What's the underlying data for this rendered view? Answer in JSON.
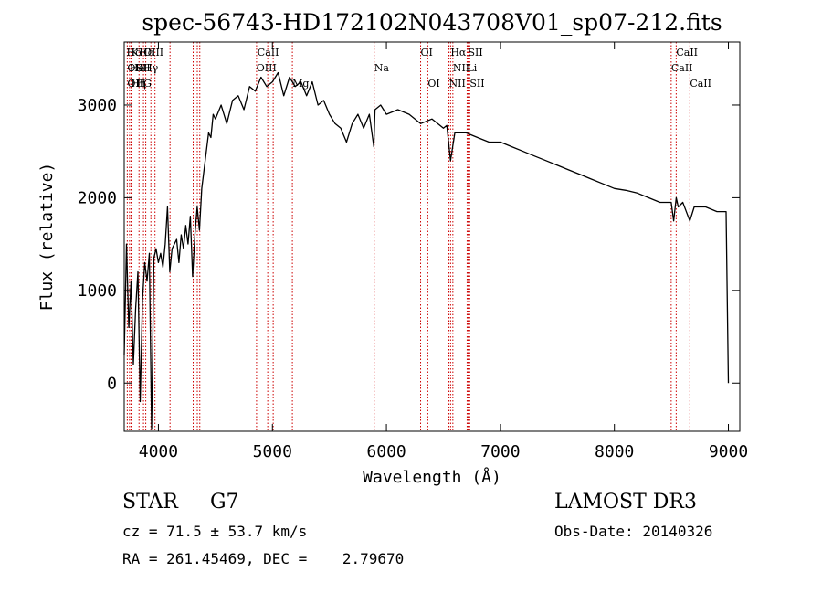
{
  "chart_data": {
    "type": "line",
    "title": "spec-56743-HD172102N043708V01_sp07-212.fits",
    "xlabel": "Wavelength (Å)",
    "ylabel": "Flux (relative)",
    "xlim": [
      3700,
      9100
    ],
    "ylim": [
      -520,
      3680
    ],
    "xticks": [
      4000,
      5000,
      6000,
      7000,
      8000,
      9000
    ],
    "yticks": [
      0,
      1000,
      2000,
      3000
    ],
    "grid": false,
    "line_color": "#000000",
    "marker_color": "#cc0000",
    "series": [
      {
        "x": [
          3700,
          3720,
          3740,
          3760,
          3780,
          3800,
          3820,
          3840,
          3860,
          3880,
          3900,
          3920,
          3940,
          3960,
          3980,
          4000,
          4020,
          4040,
          4060,
          4080,
          4100,
          4120,
          4140,
          4160,
          4180,
          4200,
          4220,
          4240,
          4260,
          4280,
          4300,
          4320,
          4340,
          4360,
          4380,
          4400,
          4420,
          4440,
          4460,
          4480,
          4500,
          4550,
          4600,
          4650,
          4700,
          4750,
          4800,
          4850,
          4900,
          4950,
          5000,
          5050,
          5100,
          5150,
          5200,
          5250,
          5300,
          5350,
          5400,
          5450,
          5500,
          5550,
          5600,
          5650,
          5700,
          5750,
          5800,
          5850,
          5890,
          5900,
          5950,
          6000,
          6100,
          6200,
          6300,
          6400,
          6500,
          6530,
          6563,
          6600,
          6700,
          6800,
          6900,
          7000,
          7100,
          7200,
          7300,
          7400,
          7500,
          7600,
          7700,
          7800,
          7900,
          8000,
          8100,
          8200,
          8300,
          8400,
          8498,
          8520,
          8542,
          8560,
          8600,
          8662,
          8700,
          8800,
          8900,
          8980,
          9000
        ],
        "y": [
          300,
          1500,
          600,
          1100,
          200,
          800,
          1200,
          -200,
          900,
          1300,
          1100,
          1400,
          -500,
          1350,
          1450,
          1300,
          1400,
          1250,
          1500,
          1900,
          1200,
          1450,
          1500,
          1550,
          1300,
          1600,
          1450,
          1700,
          1500,
          1800,
          1150,
          1600,
          1900,
          1650,
          2100,
          2300,
          2500,
          2700,
          2650,
          2900,
          2850,
          3000,
          2800,
          3050,
          3100,
          2950,
          3200,
          3150,
          3300,
          3200,
          3250,
          3350,
          3100,
          3300,
          3200,
          3250,
          3100,
          3250,
          3000,
          3050,
          2900,
          2800,
          2750,
          2600,
          2800,
          2900,
          2750,
          2900,
          2550,
          2950,
          3000,
          2900,
          2950,
          2900,
          2800,
          2850,
          2750,
          2780,
          2400,
          2700,
          2700,
          2650,
          2600,
          2600,
          2550,
          2500,
          2450,
          2400,
          2350,
          2300,
          2250,
          2200,
          2150,
          2100,
          2080,
          2050,
          2000,
          1950,
          1950,
          1750,
          2000,
          1900,
          1950,
          1750,
          1900,
          1900,
          1850,
          1850,
          0
        ]
      }
    ],
    "lines": [
      {
        "label": "Hδ",
        "x": 3720,
        "row": 1
      },
      {
        "label": "K",
        "x": 3760,
        "row": 1
      },
      {
        "label": "Hδ",
        "x": 3830,
        "row": 1
      },
      {
        "label": "OIII",
        "x": 3869,
        "row": 1
      },
      {
        "label": "OII",
        "x": 3727,
        "row": 2
      },
      {
        "label": "He",
        "x": 3747,
        "row": 2
      },
      {
        "label": "SII",
        "x": 3800,
        "row": 2
      },
      {
        "label": "Hγ",
        "x": 3869,
        "row": 2
      },
      {
        "label": "OII",
        "x": 3727,
        "row": 3
      },
      {
        "label": "Hη",
        "x": 3760,
        "row": 3
      },
      {
        "label": "H",
        "x": 3810,
        "row": 3
      },
      {
        "label": "G",
        "x": 3869,
        "row": 3
      },
      {
        "label": "CaII",
        "x": 4868,
        "row": 1
      },
      {
        "label": "OIII",
        "x": 4860,
        "row": 2
      },
      {
        "label": "Mg",
        "x": 5175,
        "row": 3
      },
      {
        "label": "Na",
        "x": 5893,
        "row": 2
      },
      {
        "label": "OI",
        "x": 6300,
        "row": 1
      },
      {
        "label": "OI",
        "x": 6363,
        "row": 3
      },
      {
        "label": "Hα",
        "x": 6563,
        "row": 1
      },
      {
        "label": "SII",
        "x": 6716,
        "row": 1
      },
      {
        "label": "NII",
        "x": 6583,
        "row": 2
      },
      {
        "label": "Li",
        "x": 6708,
        "row": 2
      },
      {
        "label": "NII",
        "x": 6548,
        "row": 3
      },
      {
        "label": "SII",
        "x": 6731,
        "row": 3
      },
      {
        "label": "CaII",
        "x": 8542,
        "row": 1
      },
      {
        "label": "CaII",
        "x": 8498,
        "row": 2
      },
      {
        "label": "CaII",
        "x": 8662,
        "row": 3
      }
    ],
    "marker_x": [
      3727,
      3747,
      3760,
      3830,
      3869,
      3889,
      3934,
      3970,
      4102,
      4305,
      4341,
      4363,
      4861,
      4959,
      5007,
      5175,
      5893,
      6300,
      6363,
      6548,
      6563,
      6583,
      6708,
      6716,
      6731,
      8498,
      8542,
      8662
    ]
  },
  "info": {
    "object_type": "STAR     G7",
    "survey": "LAMOST DR3",
    "cz": "cz = 71.5 ± 53.7 km/s",
    "obs_date": "Obs-Date: 20140326",
    "coords": "RA = 261.45469, DEC =    2.79670"
  }
}
